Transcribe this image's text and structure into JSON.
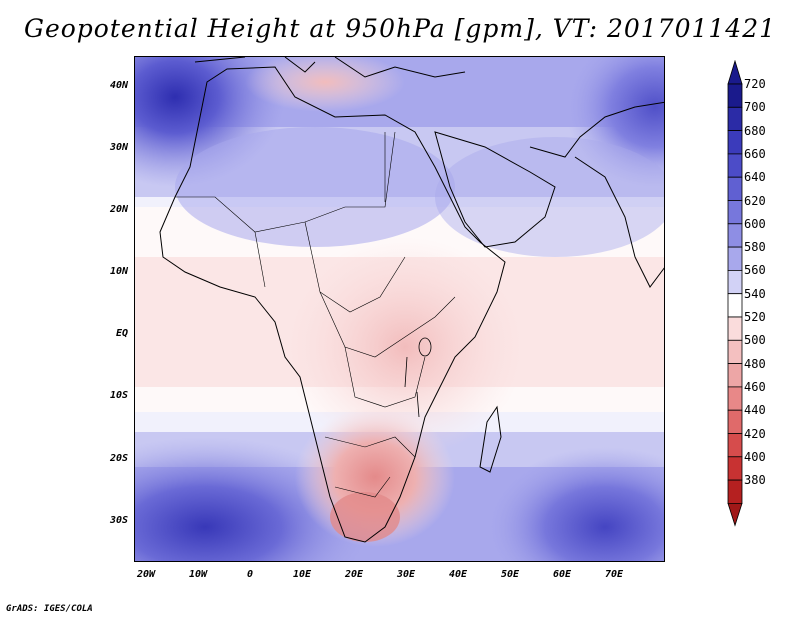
{
  "title": "Geopotential Height at 950hPa [gpm], VT: 2017011421",
  "credit": "GrADS: IGES/COLA",
  "map": {
    "region": "Africa and Arabian Peninsula",
    "lon_range": [
      -22,
      80
    ],
    "lat_range": [
      -37,
      45
    ]
  },
  "axes": {
    "lat_ticks": [
      {
        "value": 40,
        "label": "40N"
      },
      {
        "value": 30,
        "label": "30N"
      },
      {
        "value": 20,
        "label": "20N"
      },
      {
        "value": 10,
        "label": "10N"
      },
      {
        "value": 0,
        "label": "EQ"
      },
      {
        "value": -10,
        "label": "10S"
      },
      {
        "value": -20,
        "label": "20S"
      },
      {
        "value": -30,
        "label": "30S"
      }
    ],
    "lon_ticks": [
      {
        "value": -20,
        "label": "20W"
      },
      {
        "value": -10,
        "label": "10W"
      },
      {
        "value": 0,
        "label": "0"
      },
      {
        "value": 10,
        "label": "10E"
      },
      {
        "value": 20,
        "label": "20E"
      },
      {
        "value": 30,
        "label": "30E"
      },
      {
        "value": 40,
        "label": "40E"
      },
      {
        "value": 50,
        "label": "50E"
      },
      {
        "value": 60,
        "label": "60E"
      },
      {
        "value": 70,
        "label": "70E"
      }
    ]
  },
  "colorbar": {
    "levels": [
      {
        "value": "720",
        "color": "#1a1a8c"
      },
      {
        "value": "700",
        "color": "#2b2ba6"
      },
      {
        "value": "680",
        "color": "#3b3bbb"
      },
      {
        "value": "660",
        "color": "#4c4cc8"
      },
      {
        "value": "640",
        "color": "#6060d2"
      },
      {
        "value": "620",
        "color": "#7777dc"
      },
      {
        "value": "600",
        "color": "#8e8ee4"
      },
      {
        "value": "580",
        "color": "#a8a8ec"
      },
      {
        "value": "560",
        "color": "#d2d2f6"
      },
      {
        "value": "540",
        "color": "#ffffff"
      },
      {
        "value": "520",
        "color": "#fadcdc"
      },
      {
        "value": "500",
        "color": "#f4c0c0"
      },
      {
        "value": "480",
        "color": "#eda6a6"
      },
      {
        "value": "460",
        "color": "#e88888"
      },
      {
        "value": "440",
        "color": "#e06a6a"
      },
      {
        "value": "420",
        "color": "#d64c4c"
      },
      {
        "value": "400",
        "color": "#c83232"
      },
      {
        "value": "380",
        "color": "#b52020"
      }
    ],
    "min_color": "#a01818",
    "max_color": "#1a1a8c"
  }
}
